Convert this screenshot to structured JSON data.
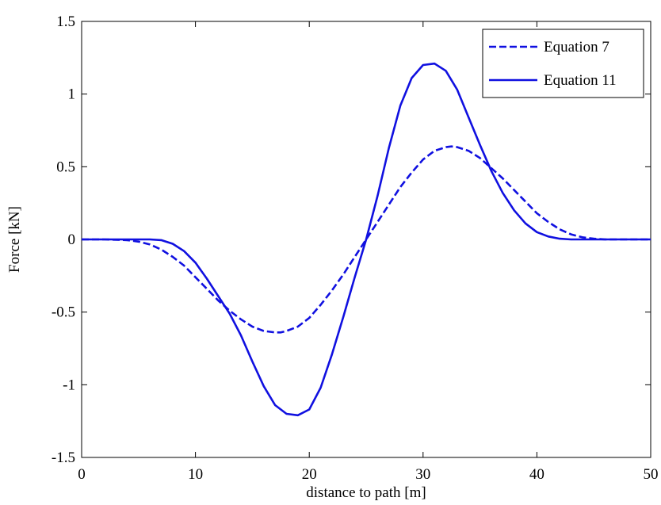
{
  "chart_data": {
    "type": "line",
    "title": "",
    "xlabel": "distance to path [m]",
    "ylabel": "Force [kN]",
    "xlim": [
      0,
      50
    ],
    "ylim": [
      -1.5,
      1.5
    ],
    "xticks": [
      0,
      10,
      20,
      30,
      40,
      50
    ],
    "xtick_labels": [
      "0",
      "10",
      "20",
      "30",
      "40",
      "50"
    ],
    "yticks": [
      -1.5,
      -1,
      -0.5,
      0,
      0.5,
      1,
      1.5
    ],
    "ytick_labels": [
      "-1.5",
      "-1",
      "-0.5",
      "0",
      "0.5",
      "1",
      "1.5"
    ],
    "grid": false,
    "legend_position": "top-right",
    "series": [
      {
        "name": "Equation 7",
        "style": "dashed",
        "color": "#1010e0",
        "x": [
          0,
          2,
          4,
          5,
          6,
          7,
          8,
          9,
          10,
          11,
          12,
          13,
          14,
          15,
          16,
          17,
          17.5,
          18,
          19,
          20,
          21,
          22,
          23,
          24,
          25,
          26,
          27,
          28,
          29,
          30,
          31,
          32,
          32.5,
          33,
          34,
          35,
          36,
          37,
          38,
          39,
          40,
          41,
          42,
          43,
          44,
          45,
          46,
          47,
          48,
          50
        ],
        "y": [
          0,
          0,
          -0.005,
          -0.015,
          -0.035,
          -0.07,
          -0.12,
          -0.18,
          -0.26,
          -0.34,
          -0.42,
          -0.49,
          -0.55,
          -0.6,
          -0.63,
          -0.64,
          -0.64,
          -0.63,
          -0.6,
          -0.54,
          -0.45,
          -0.35,
          -0.24,
          -0.12,
          0,
          0.12,
          0.24,
          0.36,
          0.46,
          0.55,
          0.61,
          0.635,
          0.64,
          0.635,
          0.61,
          0.56,
          0.49,
          0.42,
          0.34,
          0.26,
          0.18,
          0.12,
          0.07,
          0.035,
          0.015,
          0.005,
          0,
          0,
          0,
          0
        ]
      },
      {
        "name": "Equation 11",
        "style": "solid",
        "color": "#1010e0",
        "x": [
          0,
          5,
          6,
          7,
          8,
          9,
          10,
          11,
          12,
          13,
          14,
          15,
          16,
          17,
          18,
          19,
          20,
          21,
          22,
          23,
          24,
          25,
          26,
          27,
          28,
          29,
          30,
          31,
          32,
          33,
          34,
          35,
          36,
          37,
          38,
          39,
          40,
          41,
          42,
          43,
          44,
          45,
          50
        ],
        "y": [
          0,
          0,
          0,
          -0.005,
          -0.03,
          -0.08,
          -0.16,
          -0.27,
          -0.39,
          -0.51,
          -0.66,
          -0.84,
          -1.01,
          -1.14,
          -1.2,
          -1.21,
          -1.17,
          -1.02,
          -0.79,
          -0.53,
          -0.26,
          0,
          0.3,
          0.63,
          0.92,
          1.11,
          1.2,
          1.21,
          1.16,
          1.03,
          0.84,
          0.65,
          0.47,
          0.32,
          0.2,
          0.11,
          0.05,
          0.02,
          0.005,
          0,
          0,
          0,
          0
        ]
      }
    ]
  }
}
